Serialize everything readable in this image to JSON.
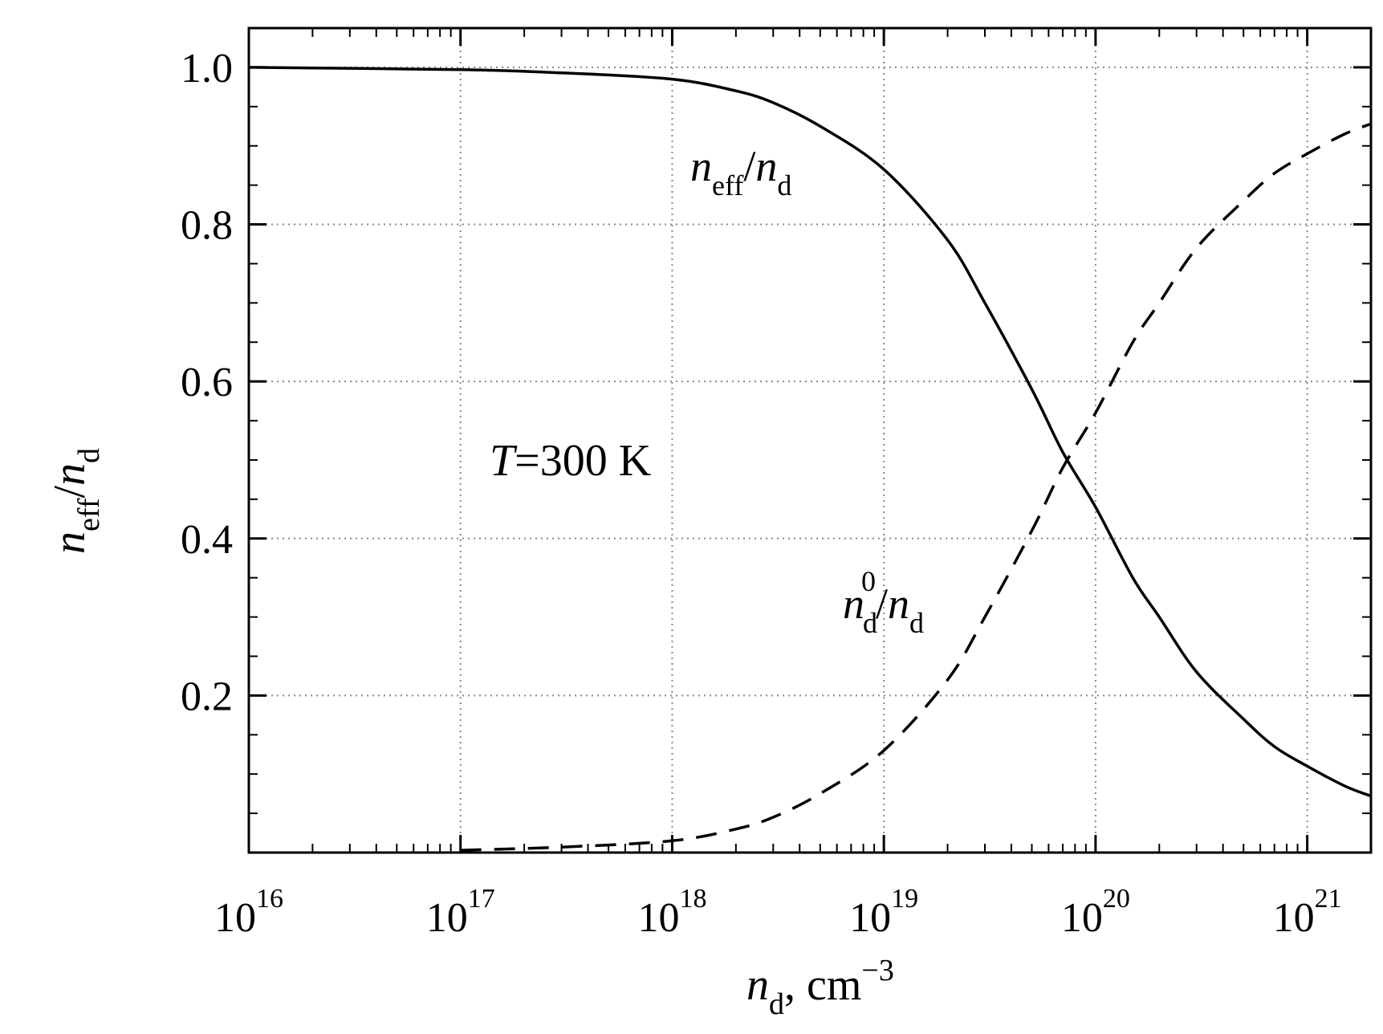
{
  "chart_data": {
    "type": "line",
    "title": "",
    "x_scale": "log",
    "xlim": [
      1e+16,
      2e+21
    ],
    "ylim": [
      0,
      1.05
    ],
    "grid": true,
    "grid_style": "dotted",
    "x_ticks": [
      {
        "value": 1e+16,
        "base": "10",
        "exp": "16"
      },
      {
        "value": 1e+17,
        "base": "10",
        "exp": "17"
      },
      {
        "value": 1e+18,
        "base": "10",
        "exp": "18"
      },
      {
        "value": 1e+19,
        "base": "10",
        "exp": "19"
      },
      {
        "value": 1e+20,
        "base": "10",
        "exp": "20"
      },
      {
        "value": 1e+21,
        "base": "10",
        "exp": "21"
      }
    ],
    "y_ticks": [
      {
        "value": 0.2,
        "label": "0.2"
      },
      {
        "value": 0.4,
        "label": "0.4"
      },
      {
        "value": 0.6,
        "label": "0.6"
      },
      {
        "value": 0.8,
        "label": "0.8"
      },
      {
        "value": 1.0,
        "label": "1.0"
      }
    ],
    "xlabel": {
      "main": "n",
      "sub": "d",
      "rest": ", cm",
      "sup": "−3"
    },
    "ylabel": {
      "n1": "n",
      "sub1": "eff",
      "slash": "/",
      "n2": "n",
      "sub2": "d"
    },
    "series": [
      {
        "label": {
          "n1": "n",
          "sub1": "eff",
          "slash": "/",
          "n2": "n",
          "sub2": "d"
        },
        "style": "solid",
        "color": "#000000",
        "x": [
          1e+16,
          1e+17,
          3e+17,
          1e+18,
          2e+18,
          3e+18,
          5e+18,
          1e+19,
          2e+19,
          3e+19,
          5e+19,
          7e+19,
          1e+20,
          1.5e+20,
          2e+20,
          3e+20,
          5e+20,
          7e+20,
          1e+21,
          1.5e+21,
          2e+21
        ],
        "y": [
          1.0,
          0.997,
          0.993,
          0.985,
          0.97,
          0.955,
          0.925,
          0.87,
          0.78,
          0.7,
          0.59,
          0.51,
          0.44,
          0.35,
          0.3,
          0.23,
          0.17,
          0.135,
          0.11,
          0.085,
          0.072
        ]
      },
      {
        "label": {
          "n1": "n",
          "sub1": "d",
          "sup1": "0",
          "slash": "/",
          "n2": "n",
          "sub2": "d"
        },
        "style": "dashed",
        "color": "#000000",
        "x": [
          1e+17,
          3e+17,
          1e+18,
          2e+18,
          3e+18,
          5e+18,
          1e+19,
          2e+19,
          3e+19,
          5e+19,
          7e+19,
          1e+20,
          1.5e+20,
          2e+20,
          3e+20,
          5e+20,
          7e+20,
          1e+21,
          1.5e+21,
          2e+21
        ],
        "y": [
          0.003,
          0.007,
          0.015,
          0.03,
          0.045,
          0.075,
          0.13,
          0.22,
          0.3,
          0.41,
          0.49,
          0.56,
          0.65,
          0.7,
          0.77,
          0.83,
          0.865,
          0.89,
          0.915,
          0.928
        ]
      }
    ],
    "annotations": [
      {
        "italic": "T",
        "text": "=300 K",
        "x": 6e+16,
        "y": 0.5
      }
    ]
  }
}
